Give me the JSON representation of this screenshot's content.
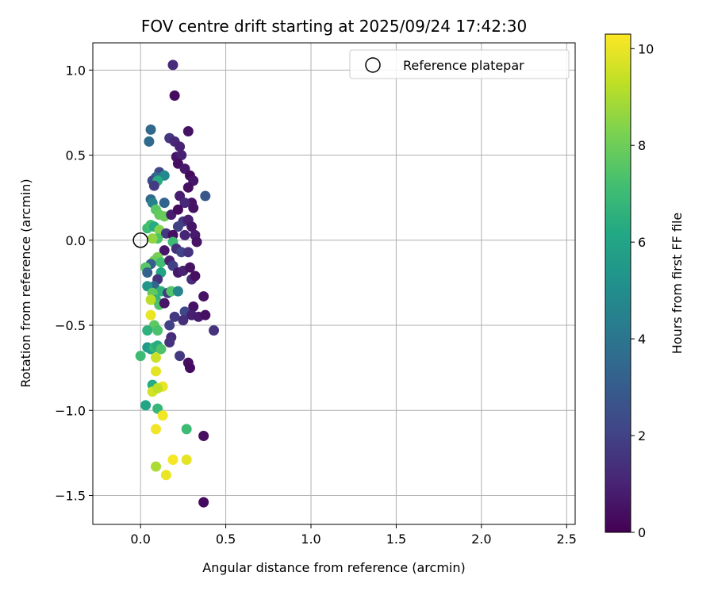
{
  "chart_data": {
    "type": "scatter",
    "title": "FOV centre drift starting at 2025/09/24 17:42:30",
    "xlabel": "Angular distance from reference (arcmin)",
    "ylabel": "Rotation from reference (arcmin)",
    "xlim": [
      -0.28,
      2.55
    ],
    "ylim": [
      -1.67,
      1.16
    ],
    "xticks": [
      0.0,
      0.5,
      1.0,
      1.5,
      2.0,
      2.5
    ],
    "xtick_labels": [
      "0.0",
      "0.5",
      "1.0",
      "1.5",
      "2.0",
      "2.5"
    ],
    "yticks": [
      1.0,
      0.5,
      0.0,
      -0.5,
      -1.0,
      -1.5
    ],
    "ytick_labels": [
      "1.0",
      "0.5",
      "0.0",
      "−0.5",
      "−1.0",
      "−1.5"
    ],
    "grid": true,
    "legend": {
      "position": "top-right",
      "entries": [
        "Reference platepar"
      ]
    },
    "reference_point": {
      "x": 0.0,
      "y": 0.0,
      "label": "Reference platepar"
    },
    "colorbar": {
      "label": "Hours from first FF file",
      "colormap": "viridis",
      "range": [
        0,
        10.3
      ],
      "ticks": [
        0,
        2,
        4,
        6,
        8,
        10
      ],
      "tick_labels": [
        "0",
        "2",
        "4",
        "6",
        "8",
        "10"
      ]
    },
    "point_columns": [
      "x",
      "y",
      "hours"
    ],
    "points": [
      [
        0.19,
        1.03,
        1.3
      ],
      [
        0.2,
        0.85,
        0.3
      ],
      [
        0.28,
        0.64,
        0.5
      ],
      [
        0.06,
        0.65,
        3.5
      ],
      [
        0.17,
        0.6,
        1.6
      ],
      [
        0.05,
        0.58,
        3.6
      ],
      [
        0.2,
        0.58,
        1.2
      ],
      [
        0.23,
        0.55,
        1.0
      ],
      [
        0.21,
        0.49,
        0.6
      ],
      [
        0.24,
        0.5,
        0.9
      ],
      [
        0.22,
        0.45,
        0.4
      ],
      [
        0.26,
        0.42,
        0.7
      ],
      [
        0.11,
        0.4,
        2.2
      ],
      [
        0.09,
        0.37,
        3.5
      ],
      [
        0.14,
        0.38,
        4.8
      ],
      [
        0.07,
        0.35,
        2.3
      ],
      [
        0.1,
        0.35,
        6.3
      ],
      [
        0.29,
        0.38,
        0.3
      ],
      [
        0.31,
        0.35,
        0.6
      ],
      [
        0.28,
        0.31,
        0.4
      ],
      [
        0.08,
        0.32,
        1.8
      ],
      [
        0.3,
        0.22,
        0.5
      ],
      [
        0.23,
        0.26,
        0.8
      ],
      [
        0.38,
        0.26,
        2.8
      ],
      [
        0.14,
        0.22,
        3.3
      ],
      [
        0.06,
        0.24,
        3.5
      ],
      [
        0.07,
        0.22,
        4.5
      ],
      [
        0.26,
        0.22,
        1.2
      ],
      [
        0.31,
        0.19,
        0.5
      ],
      [
        0.09,
        0.18,
        7.6
      ],
      [
        0.11,
        0.15,
        7.8
      ],
      [
        0.14,
        0.14,
        7.9
      ],
      [
        0.18,
        0.15,
        0.8
      ],
      [
        0.22,
        0.18,
        0.3
      ],
      [
        0.25,
        0.11,
        1.6
      ],
      [
        0.28,
        0.12,
        0.9
      ],
      [
        0.22,
        0.08,
        2.0
      ],
      [
        0.3,
        0.08,
        0.6
      ],
      [
        0.04,
        0.07,
        7.0
      ],
      [
        0.06,
        0.09,
        7.2
      ],
      [
        0.08,
        0.08,
        6.3
      ],
      [
        0.11,
        0.06,
        8.4
      ],
      [
        0.15,
        0.04,
        1.7
      ],
      [
        0.19,
        0.03,
        0.4
      ],
      [
        0.26,
        0.03,
        1.1
      ],
      [
        0.32,
        0.03,
        0.8
      ],
      [
        0.33,
        -0.01,
        0.5
      ],
      [
        0.1,
        0.01,
        7.4
      ],
      [
        0.07,
        0.01,
        8.6
      ],
      [
        0.19,
        -0.01,
        7.0
      ],
      [
        0.21,
        -0.05,
        1.4
      ],
      [
        0.24,
        -0.07,
        2.1
      ],
      [
        0.28,
        -0.07,
        1.5
      ],
      [
        0.14,
        -0.06,
        0.6
      ],
      [
        0.1,
        -0.1,
        8.2
      ],
      [
        0.08,
        -0.12,
        8.0
      ],
      [
        0.12,
        -0.13,
        7.1
      ],
      [
        0.06,
        -0.14,
        3.0
      ],
      [
        0.03,
        -0.16,
        7.6
      ],
      [
        0.17,
        -0.12,
        0.9
      ],
      [
        0.19,
        -0.15,
        2.0
      ],
      [
        0.22,
        -0.19,
        0.7
      ],
      [
        0.25,
        -0.18,
        1.0
      ],
      [
        0.29,
        -0.16,
        0.5
      ],
      [
        0.12,
        -0.19,
        6.0
      ],
      [
        0.04,
        -0.19,
        3.2
      ],
      [
        0.3,
        -0.23,
        1.3
      ],
      [
        0.32,
        -0.21,
        0.4
      ],
      [
        0.1,
        -0.23,
        1.5
      ],
      [
        0.08,
        -0.27,
        3.4
      ],
      [
        0.04,
        -0.27,
        5.4
      ],
      [
        0.12,
        -0.3,
        6.6
      ],
      [
        0.16,
        -0.31,
        1.8
      ],
      [
        0.18,
        -0.3,
        7.5
      ],
      [
        0.22,
        -0.3,
        4.6
      ],
      [
        0.07,
        -0.31,
        7.8
      ],
      [
        0.09,
        -0.35,
        6.6
      ],
      [
        0.06,
        -0.35,
        9.2
      ],
      [
        0.11,
        -0.38,
        7.4
      ],
      [
        0.14,
        -0.37,
        0.6
      ],
      [
        0.2,
        -0.45,
        1.7
      ],
      [
        0.31,
        -0.39,
        0.5
      ],
      [
        0.26,
        -0.42,
        2.2
      ],
      [
        0.3,
        -0.44,
        0.9
      ],
      [
        0.25,
        -0.47,
        1.4
      ],
      [
        0.34,
        -0.45,
        0.8
      ],
      [
        0.38,
        -0.44,
        0.4
      ],
      [
        0.43,
        -0.53,
        1.5
      ],
      [
        0.37,
        -0.33,
        0.5
      ],
      [
        0.06,
        -0.44,
        10.0
      ],
      [
        0.08,
        -0.5,
        7.7
      ],
      [
        0.04,
        -0.53,
        6.6
      ],
      [
        0.17,
        -0.5,
        2.0
      ],
      [
        0.1,
        -0.53,
        7.3
      ],
      [
        0.18,
        -0.57,
        1.3
      ],
      [
        0.17,
        -0.6,
        1.5
      ],
      [
        0.04,
        -0.63,
        5.5
      ],
      [
        0.06,
        -0.64,
        5.8
      ],
      [
        0.08,
        -0.63,
        6.8
      ],
      [
        0.1,
        -0.62,
        6.3
      ],
      [
        0.12,
        -0.64,
        7.4
      ],
      [
        0.23,
        -0.68,
        1.7
      ],
      [
        0.0,
        -0.68,
        7.0
      ],
      [
        0.09,
        -0.69,
        9.5
      ],
      [
        0.28,
        -0.72,
        0.4
      ],
      [
        0.29,
        -0.75,
        0.3
      ],
      [
        0.09,
        -0.77,
        9.9
      ],
      [
        0.07,
        -0.85,
        6.3
      ],
      [
        0.07,
        -0.89,
        9.6
      ],
      [
        0.13,
        -0.86,
        10.0
      ],
      [
        0.1,
        -0.87,
        9.3
      ],
      [
        0.03,
        -0.97,
        6.0
      ],
      [
        0.1,
        -0.99,
        6.8
      ],
      [
        0.13,
        -1.03,
        10.1
      ],
      [
        0.09,
        -1.11,
        10.1
      ],
      [
        0.27,
        -1.11,
        7.0
      ],
      [
        0.37,
        -1.15,
        0.4
      ],
      [
        0.19,
        -1.29,
        10.2
      ],
      [
        0.27,
        -1.29,
        9.9
      ],
      [
        0.09,
        -1.33,
        9.0
      ],
      [
        0.15,
        -1.38,
        10.0
      ],
      [
        0.37,
        -1.54,
        0.3
      ]
    ]
  }
}
